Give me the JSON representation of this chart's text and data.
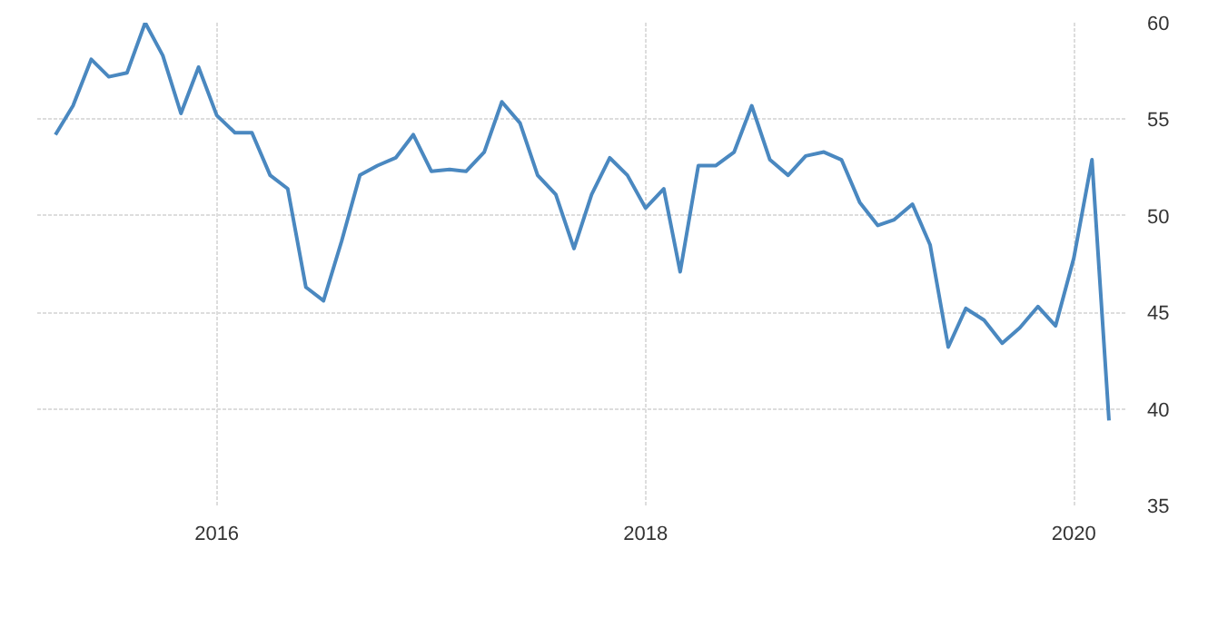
{
  "chart_data": {
    "type": "line",
    "x": [
      "2015-04",
      "2015-05",
      "2015-06",
      "2015-07",
      "2015-08",
      "2015-09",
      "2015-10",
      "2015-11",
      "2015-12",
      "2016-01",
      "2016-02",
      "2016-03",
      "2016-04",
      "2016-05",
      "2016-06",
      "2016-07",
      "2016-08",
      "2016-09",
      "2016-10",
      "2016-11",
      "2016-12",
      "2017-01",
      "2017-02",
      "2017-03",
      "2017-04",
      "2017-05",
      "2017-06",
      "2017-07",
      "2017-08",
      "2017-09",
      "2017-10",
      "2017-11",
      "2017-12",
      "2018-01",
      "2018-02",
      "2018-03",
      "2018-04",
      "2018-05",
      "2018-06",
      "2018-07",
      "2018-08",
      "2018-09",
      "2018-10",
      "2018-11",
      "2018-12",
      "2019-01",
      "2019-02",
      "2019-03",
      "2019-04",
      "2019-05",
      "2019-06",
      "2019-07",
      "2019-08",
      "2019-09",
      "2019-10",
      "2019-11",
      "2019-12",
      "2020-01",
      "2020-02",
      "2020-03"
    ],
    "series": [
      {
        "color": "#4a88c0",
        "values": [
          54.2,
          55.7,
          58.1,
          57.2,
          57.4,
          60,
          58.3,
          55.3,
          57.7,
          55.2,
          54.3,
          54.3,
          52.1,
          51.4,
          46.3,
          45.6,
          48.7,
          52.1,
          52.6,
          53,
          54.2,
          52.3,
          52.4,
          52.3,
          53.3,
          55.9,
          54.8,
          52.1,
          51.1,
          48.3,
          51.1,
          53,
          52.1,
          50.4,
          51.4,
          47.1,
          52.6,
          52.6,
          53.3,
          55.7,
          52.9,
          52.1,
          53.1,
          53.3,
          52.9,
          50.7,
          49.5,
          49.8,
          50.6,
          48.5,
          43.2,
          45.2,
          44.6,
          43.4,
          44.2,
          45.3,
          44.3,
          47.8,
          52.9,
          39.4
        ]
      }
    ],
    "xlim": [
      "2015-03",
      "2020-04"
    ],
    "xticks": [
      {
        "value": "2016-01",
        "label": "2016"
      },
      {
        "value": "2018-01",
        "label": "2018"
      },
      {
        "value": "2020-01",
        "label": "2020"
      }
    ],
    "ylim": [
      35,
      60
    ],
    "yticks": [
      35,
      40,
      45,
      50,
      55,
      60
    ],
    "grid": true,
    "marker": "none",
    "line_style": "solid"
  }
}
